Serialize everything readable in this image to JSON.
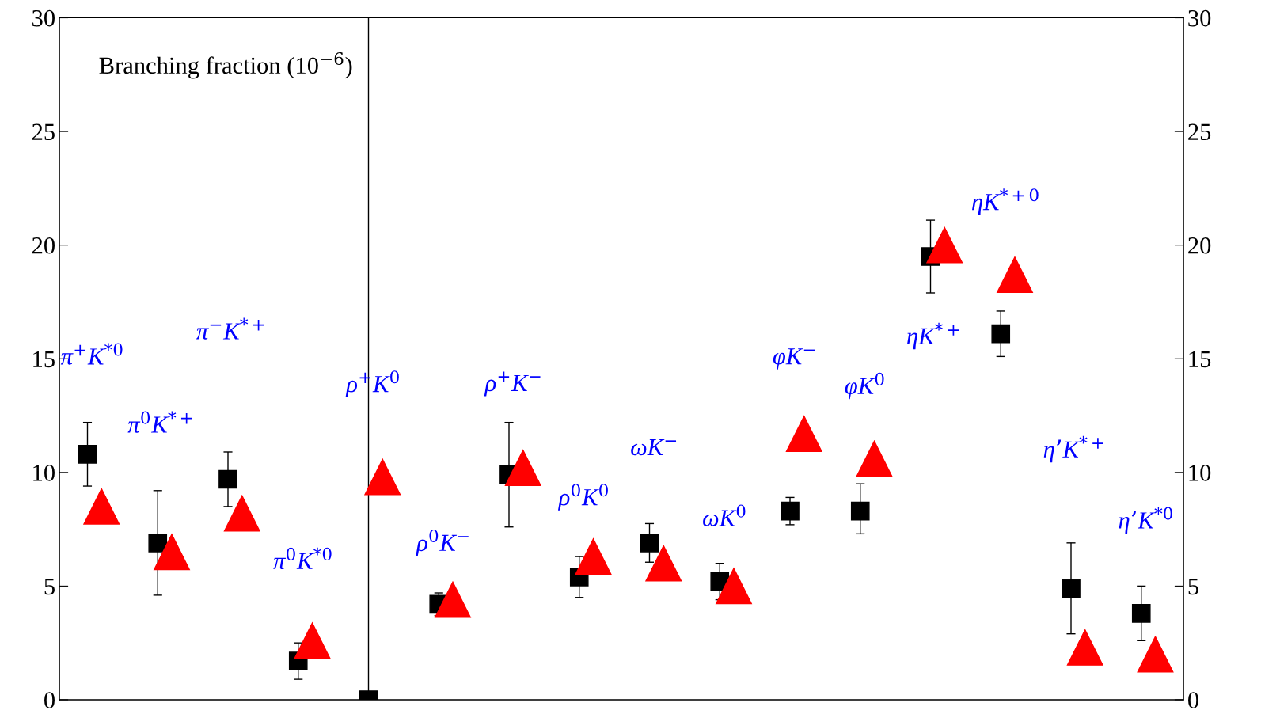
{
  "chart_data": {
    "type": "scatter",
    "categories": [
      null,
      null,
      null,
      null,
      null,
      null,
      null,
      null,
      null,
      null,
      null,
      null,
      null,
      null,
      null,
      null
    ],
    "ylim": [
      0,
      30
    ],
    "yticks": [
      0,
      5,
      10,
      15,
      20,
      25,
      30
    ],
    "y2lim": [
      0,
      30
    ],
    "y2ticks": [
      0,
      5,
      10,
      15,
      20,
      25,
      30
    ],
    "tick_labels": "y",
    "grid": false,
    "legend": false,
    "series": [
      {
        "color": "#000000",
        "marker": "square",
        "values": [
          10.8,
          6.9,
          9.7,
          1.7,
          0.0,
          4.2,
          9.9,
          5.4,
          6.9,
          5.2,
          8.3,
          8.3,
          19.5,
          16.1,
          4.9,
          3.8
        ],
        "errors": [
          1.4,
          2.3,
          [
            8.5,
            10.9
          ],
          0.8,
          null,
          0.5,
          2.3,
          0.9,
          0.85,
          0.8,
          0.6,
          [
            7.3,
            9.5
          ],
          1.6,
          1.0,
          2.0,
          1.2
        ]
      },
      {
        "color": "#ff0000",
        "marker": "triangle",
        "values": [
          8.5,
          6.5,
          8.2,
          2.6,
          9.8,
          4.4,
          10.2,
          6.3,
          6.0,
          5.0,
          11.7,
          10.6,
          20.0,
          18.7,
          2.3,
          2.0
        ]
      }
    ],
    "annotations": [
      "Branching fraction (10$^{−6}$)",
      "π$^{+}$K$^{*0}$",
      "π$^{0}$K$^{*+}$",
      "π$^{−}$K$^{*+}$",
      "π$^{0}$K$^{*0}$",
      "ρ$^{+}$K$^{0}$",
      "ρ$^{0}$K$^{−}$",
      "ρ$^{+}$K$^{−}$",
      "ρ$^{0}$K$^{0}$",
      "ωK$^{−}$",
      "ωK$^{0}$",
      "φK$^{−}$",
      "φK$^{0}$",
      "ηK$^{*+}$",
      "ηK$^{*+0}$",
      "η’K$^{*+}$",
      "η’K$^{*0}$"
    ]
  }
}
